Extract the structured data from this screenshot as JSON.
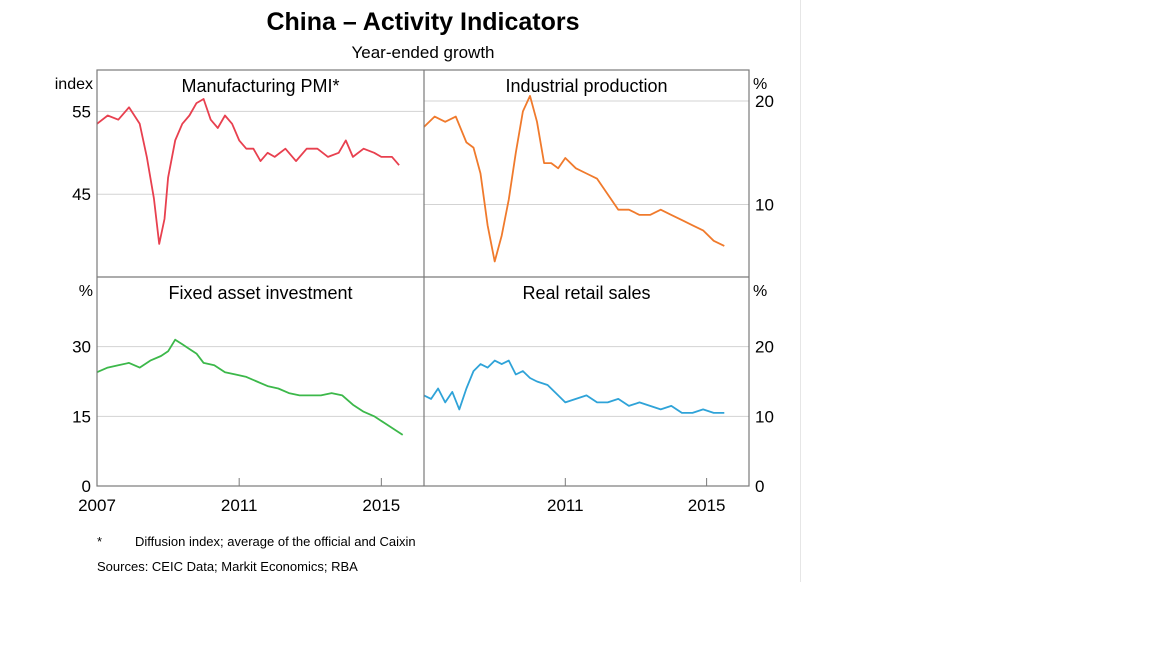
{
  "title": "China – Activity Indicators",
  "subtitle": "Year-ended growth",
  "footnote_marker": "*",
  "footnote_text": "Diffusion index; average of the official and Caixin",
  "sources": "Sources:  CEIC Data; Markit Economics; RBA",
  "colors": {
    "pmi": "#e8404f",
    "ip": "#f07a2c",
    "fai": "#3cb84a",
    "retail": "#2fa3d8",
    "frame": "#7a7a7a",
    "grid": "#d3d3d3"
  },
  "chart_data": [
    {
      "type": "line",
      "title": "Manufacturing PMI*",
      "ylabel": "index",
      "ylim": [
        35,
        60
      ],
      "yticks": [
        45,
        55
      ],
      "xlim": [
        2007,
        2016.2
      ],
      "xticks": [
        2007,
        2011,
        2015
      ],
      "series": [
        {
          "x": [
            2007.0,
            2007.3,
            2007.6,
            2007.9,
            2008.2,
            2008.4,
            2008.6,
            2008.75,
            2008.9,
            2009.0,
            2009.2,
            2009.4,
            2009.6,
            2009.8,
            2010.0,
            2010.2,
            2010.4,
            2010.6,
            2010.8,
            2011.0,
            2011.2,
            2011.4,
            2011.6,
            2011.8,
            2012.0,
            2012.3,
            2012.6,
            2012.9,
            2013.2,
            2013.5,
            2013.8,
            2014.0,
            2014.2,
            2014.5,
            2014.8,
            2015.0,
            2015.3,
            2015.5
          ],
          "values": [
            53.5,
            54.5,
            54.0,
            55.5,
            53.5,
            49.5,
            44.5,
            39.0,
            42.0,
            47.0,
            51.5,
            53.5,
            54.5,
            56.0,
            56.5,
            54.0,
            53.0,
            54.5,
            53.5,
            51.5,
            50.5,
            50.5,
            49.0,
            50.0,
            49.5,
            50.5,
            49.0,
            50.5,
            50.5,
            49.5,
            50.0,
            51.5,
            49.5,
            50.5,
            50.0,
            49.5,
            49.5,
            48.5
          ]
        }
      ]
    },
    {
      "type": "line",
      "title": "Industrial production",
      "ylabel": "%",
      "ylim": [
        3,
        23
      ],
      "yticks": [
        10,
        20
      ],
      "xlim": [
        2007,
        2016.2
      ],
      "xticks": [
        2011,
        2015
      ],
      "series": [
        {
          "x": [
            2007.0,
            2007.3,
            2007.6,
            2007.9,
            2008.2,
            2008.4,
            2008.6,
            2008.8,
            2009.0,
            2009.2,
            2009.4,
            2009.6,
            2009.8,
            2010.0,
            2010.2,
            2010.4,
            2010.6,
            2010.8,
            2011.0,
            2011.3,
            2011.6,
            2011.9,
            2012.2,
            2012.5,
            2012.8,
            2013.1,
            2013.4,
            2013.7,
            2014.0,
            2014.3,
            2014.6,
            2014.9,
            2015.2,
            2015.5
          ],
          "values": [
            17.5,
            18.5,
            18.0,
            18.5,
            16.0,
            15.5,
            13.0,
            8.0,
            4.5,
            7.0,
            10.5,
            15.0,
            19.0,
            20.5,
            18.0,
            14.0,
            14.0,
            13.5,
            14.5,
            13.5,
            13.0,
            12.5,
            11.0,
            9.5,
            9.5,
            9.0,
            9.0,
            9.5,
            9.0,
            8.5,
            8.0,
            7.5,
            6.5,
            6.0
          ]
        }
      ]
    },
    {
      "type": "line",
      "title": "Fixed asset investment",
      "ylabel": "%",
      "ylim": [
        0,
        45
      ],
      "yticks": [
        0,
        15,
        30
      ],
      "xlim": [
        2007,
        2016.2
      ],
      "xticks": [
        2007,
        2011,
        2015
      ],
      "series": [
        {
          "x": [
            2007.0,
            2007.3,
            2007.6,
            2007.9,
            2008.2,
            2008.5,
            2008.8,
            2009.0,
            2009.2,
            2009.4,
            2009.6,
            2009.8,
            2010.0,
            2010.3,
            2010.6,
            2010.9,
            2011.2,
            2011.5,
            2011.8,
            2012.1,
            2012.4,
            2012.7,
            2013.0,
            2013.3,
            2013.6,
            2013.9,
            2014.2,
            2014.5,
            2014.8,
            2015.1,
            2015.4,
            2015.6
          ],
          "values": [
            24.5,
            25.5,
            26.0,
            26.5,
            25.5,
            27.0,
            28.0,
            29.0,
            31.5,
            30.5,
            29.5,
            28.5,
            26.5,
            26.0,
            24.5,
            24.0,
            23.5,
            22.5,
            21.5,
            21.0,
            20.0,
            19.5,
            19.5,
            19.5,
            20.0,
            19.5,
            17.5,
            16.0,
            15.0,
            13.5,
            12.0,
            11.0
          ]
        }
      ]
    },
    {
      "type": "line",
      "title": "Real retail sales",
      "ylabel": "%",
      "ylim": [
        0,
        30
      ],
      "yticks": [
        0,
        10,
        20
      ],
      "xlim": [
        2007,
        2016.2
      ],
      "xticks": [
        2011,
        2015
      ],
      "series": [
        {
          "x": [
            2007.0,
            2007.2,
            2007.4,
            2007.6,
            2007.8,
            2008.0,
            2008.2,
            2008.4,
            2008.6,
            2008.8,
            2009.0,
            2009.2,
            2009.4,
            2009.6,
            2009.8,
            2010.0,
            2010.2,
            2010.5,
            2010.8,
            2011.0,
            2011.3,
            2011.6,
            2011.9,
            2012.2,
            2012.5,
            2012.8,
            2013.1,
            2013.4,
            2013.7,
            2014.0,
            2014.3,
            2014.6,
            2014.9,
            2015.2,
            2015.5
          ],
          "values": [
            13.0,
            12.5,
            14.0,
            12.0,
            13.5,
            11.0,
            14.0,
            16.5,
            17.5,
            17.0,
            18.0,
            17.5,
            18.0,
            16.0,
            16.5,
            15.5,
            15.0,
            14.5,
            13.0,
            12.0,
            12.5,
            13.0,
            12.0,
            12.0,
            12.5,
            11.5,
            12.0,
            11.5,
            11.0,
            11.5,
            10.5,
            10.5,
            11.0,
            10.5,
            10.5
          ]
        }
      ]
    }
  ]
}
